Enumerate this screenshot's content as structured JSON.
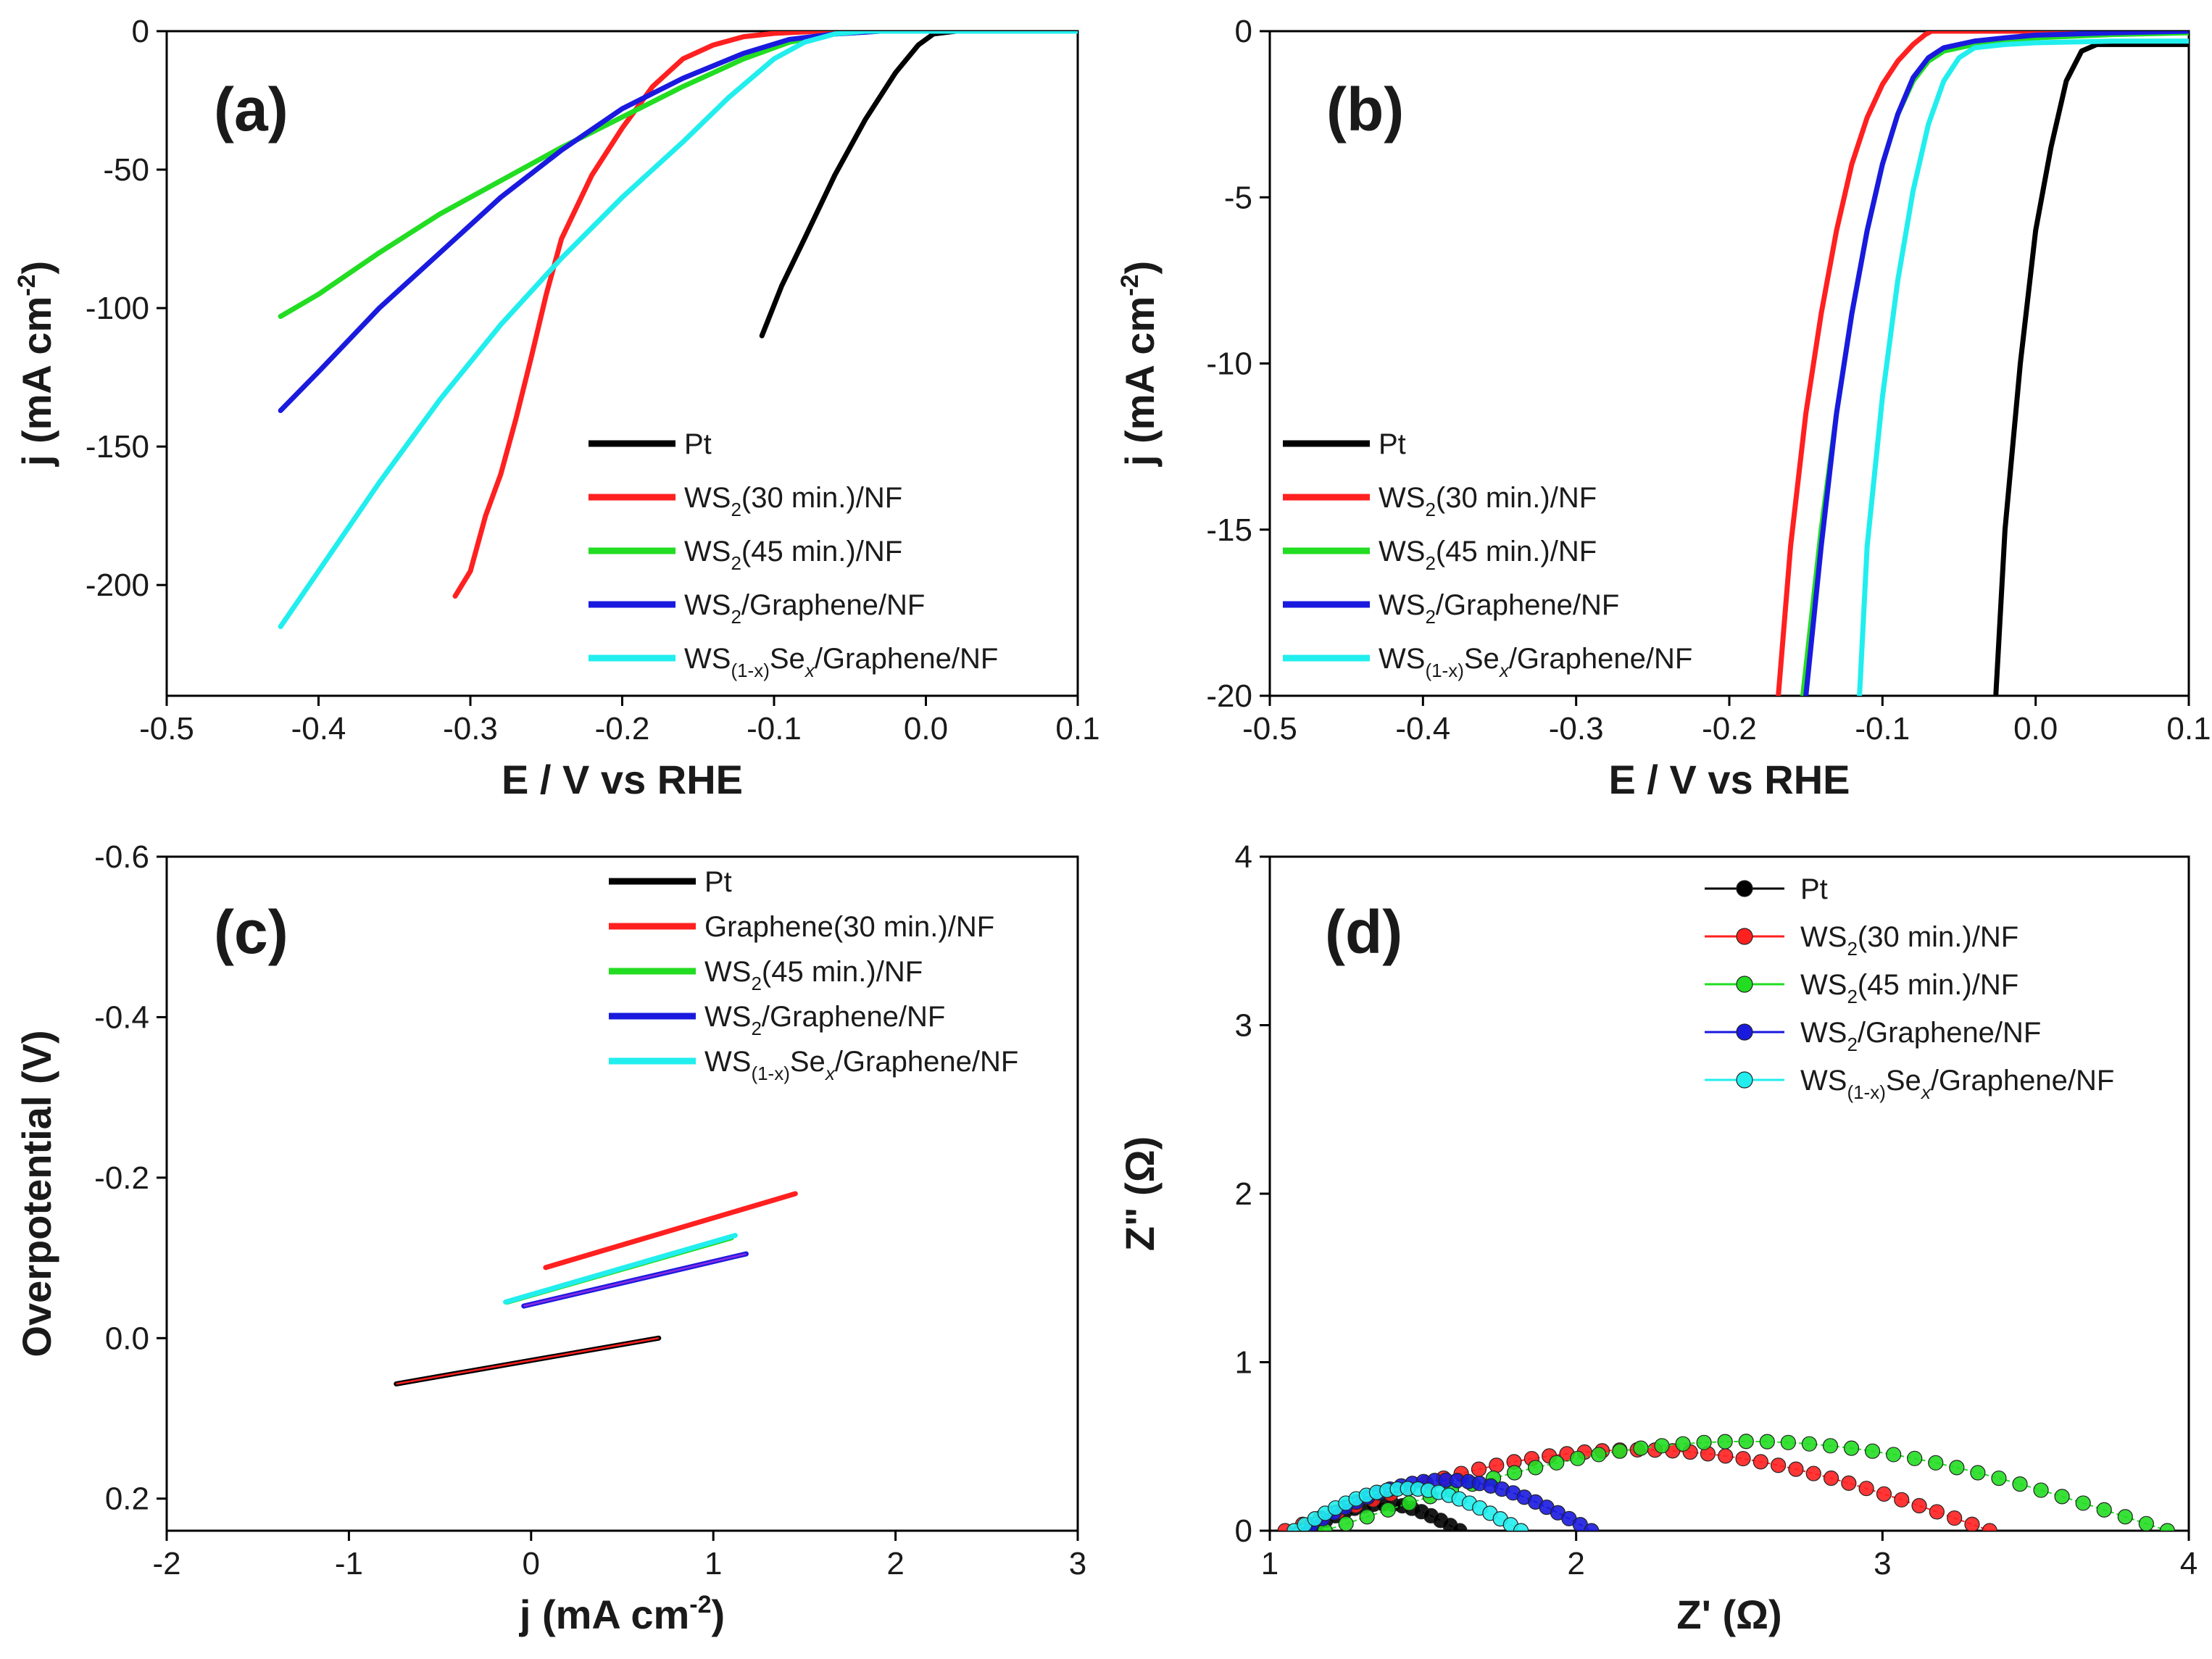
{
  "colors": {
    "Pt": "#000000",
    "red": "#ff2020",
    "green": "#22dd22",
    "blue": "#1a1adf",
    "cyan": "#22eeee",
    "purple": "#8a2be2"
  },
  "chart_data": [
    {
      "id": "a",
      "type": "line",
      "panel_label": "(a)",
      "xlabel": "E / V vs RHE",
      "ylabel": "j (mA cm-2)",
      "xlim": [
        -0.5,
        0.1
      ],
      "ylim": [
        -240,
        0
      ],
      "xticks": [
        -0.5,
        -0.4,
        -0.3,
        -0.2,
        -0.1,
        0.0,
        0.1
      ],
      "xtick_labels": [
        "-0.5",
        "-0.4",
        "-0.3",
        "-0.2",
        "-0.1",
        "0.0",
        "0.1"
      ],
      "yticks": [
        0,
        -50,
        -100,
        -150,
        -200
      ],
      "ytick_labels": [
        "0",
        "-50",
        "-100",
        "-150",
        "-200"
      ],
      "legend_position": "bottom-right",
      "series": [
        {
          "name": "Pt",
          "label_main": "Pt",
          "label_parts": [],
          "color": "#000000",
          "x": [
            -0.108,
            -0.095,
            -0.08,
            -0.06,
            -0.04,
            -0.02,
            -0.005,
            0.005,
            0.02,
            0.04,
            0.1
          ],
          "y": [
            -110,
            -92,
            -75,
            -52,
            -32,
            -15,
            -5,
            -1,
            0,
            0,
            0
          ]
        },
        {
          "name": "WS2(30 min.)/NF",
          "label_main": "WS",
          "label_parts": [
            "2",
            "(30 min.)/NF"
          ],
          "color": "#ff2020",
          "x": [
            -0.31,
            -0.3,
            -0.29,
            -0.28,
            -0.27,
            -0.26,
            -0.25,
            -0.24,
            -0.22,
            -0.2,
            -0.18,
            -0.16,
            -0.14,
            -0.12,
            -0.1,
            -0.07,
            0.1
          ],
          "y": [
            -204,
            -195,
            -175,
            -160,
            -140,
            -118,
            -95,
            -75,
            -52,
            -35,
            -20,
            -10,
            -5,
            -2,
            -0.8,
            0,
            0
          ]
        },
        {
          "name": "WS2(45 min.)/NF",
          "label_main": "WS",
          "label_parts": [
            "2",
            "(45 min.)/NF"
          ],
          "color": "#22dd22",
          "x": [
            -0.425,
            -0.4,
            -0.36,
            -0.32,
            -0.28,
            -0.24,
            -0.2,
            -0.16,
            -0.12,
            -0.09,
            -0.06,
            -0.03,
            0.1
          ],
          "y": [
            -103,
            -95,
            -80,
            -66,
            -54,
            -42,
            -31,
            -20,
            -10,
            -4,
            -1,
            0,
            0
          ]
        },
        {
          "name": "WS2/Graphene/NF",
          "label_main": "WS",
          "label_parts": [
            "2",
            "/Graphene/NF"
          ],
          "color": "#1a1adf",
          "x": [
            -0.425,
            -0.4,
            -0.36,
            -0.32,
            -0.28,
            -0.24,
            -0.2,
            -0.16,
            -0.12,
            -0.09,
            -0.06,
            -0.03,
            0.1
          ],
          "y": [
            -137,
            -123,
            -100,
            -80,
            -60,
            -43,
            -28,
            -17,
            -8,
            -3,
            -1,
            0,
            0
          ]
        },
        {
          "name": "WS(1-x)Sex/Graphene/NF",
          "label_main": "WS",
          "label_parts": [
            "(1-x)",
            "Se",
            "x",
            "/Graphene/NF"
          ],
          "color": "#22eeee",
          "x": [
            -0.425,
            -0.4,
            -0.36,
            -0.32,
            -0.28,
            -0.24,
            -0.2,
            -0.16,
            -0.13,
            -0.1,
            -0.08,
            -0.06,
            -0.04,
            0.1
          ],
          "y": [
            -215,
            -195,
            -163,
            -133,
            -106,
            -82,
            -60,
            -40,
            -24,
            -10,
            -4,
            -1,
            0,
            0
          ]
        }
      ]
    },
    {
      "id": "b",
      "type": "line",
      "panel_label": "(b)",
      "xlabel": "E / V vs RHE",
      "ylabel": "j (mA cm-2)",
      "xlim": [
        -0.5,
        0.1
      ],
      "ylim": [
        -20,
        0
      ],
      "xticks": [
        -0.5,
        -0.4,
        -0.3,
        -0.2,
        -0.1,
        0.0,
        0.1
      ],
      "xtick_labels": [
        "-0.5",
        "-0.4",
        "-0.3",
        "-0.2",
        "-0.1",
        "0.0",
        "0.1"
      ],
      "yticks": [
        0,
        -5,
        -10,
        -15,
        -20
      ],
      "ytick_labels": [
        "0",
        "-5",
        "-10",
        "-15",
        "-20"
      ],
      "legend_position": "bottom-left",
      "series": [
        {
          "name": "Pt",
          "label_main": "Pt",
          "label_parts": [],
          "color": "#000000",
          "x": [
            -0.026,
            -0.02,
            -0.01,
            0.0,
            0.01,
            0.02,
            0.03,
            0.04,
            0.1
          ],
          "y": [
            -20,
            -15,
            -10,
            -6,
            -3.5,
            -1.5,
            -0.6,
            -0.4,
            -0.4
          ]
        },
        {
          "name": "WS2(30 min.)/NF",
          "label_main": "WS",
          "label_parts": [
            "2",
            "(30 min.)/NF"
          ],
          "color": "#ff2020",
          "x": [
            -0.168,
            -0.16,
            -0.15,
            -0.14,
            -0.13,
            -0.12,
            -0.11,
            -0.1,
            -0.09,
            -0.08,
            -0.072,
            -0.068,
            0.1
          ],
          "y": [
            -20,
            -15.5,
            -11.5,
            -8.5,
            -6,
            -4,
            -2.6,
            -1.6,
            -0.9,
            -0.4,
            -0.1,
            0,
            0
          ]
        },
        {
          "name": "WS2(45 min.)/NF",
          "label_main": "WS",
          "label_parts": [
            "2",
            "(45 min.)/NF"
          ],
          "color": "#22dd22",
          "x": [
            -0.152,
            -0.14,
            -0.13,
            -0.12,
            -0.11,
            -0.1,
            -0.09,
            -0.08,
            -0.07,
            -0.06,
            -0.04,
            -0.02,
            0.0,
            0.05,
            0.1
          ],
          "y": [
            -20,
            -15,
            -11.5,
            -8.5,
            -6,
            -4,
            -2.5,
            -1.5,
            -0.9,
            -0.6,
            -0.4,
            -0.3,
            -0.2,
            -0.1,
            -0.05
          ]
        },
        {
          "name": "WS2/Graphene/NF",
          "label_main": "WS",
          "label_parts": [
            "2",
            "/Graphene/NF"
          ],
          "color": "#1a1adf",
          "x": [
            -0.15,
            -0.14,
            -0.13,
            -0.12,
            -0.11,
            -0.1,
            -0.09,
            -0.08,
            -0.07,
            -0.06,
            -0.04,
            -0.02,
            0.0,
            0.05,
            0.1
          ],
          "y": [
            -20,
            -15.5,
            -11.5,
            -8.5,
            -6,
            -4,
            -2.5,
            -1.4,
            -0.8,
            -0.5,
            -0.3,
            -0.2,
            -0.12,
            -0.05,
            0
          ]
        },
        {
          "name": "WS(1-x)Sex/Graphene/NF",
          "label_main": "WS",
          "label_parts": [
            "(1-x)",
            "Se",
            "x",
            "/Graphene/NF"
          ],
          "color": "#22eeee",
          "x": [
            -0.115,
            -0.11,
            -0.1,
            -0.09,
            -0.08,
            -0.07,
            -0.06,
            -0.05,
            -0.04,
            -0.02,
            0.0,
            0.05,
            0.1
          ],
          "y": [
            -20,
            -15.5,
            -11,
            -7.5,
            -4.8,
            -2.8,
            -1.5,
            -0.8,
            -0.5,
            -0.4,
            -0.35,
            -0.3,
            -0.3
          ]
        }
      ]
    },
    {
      "id": "c",
      "type": "line",
      "panel_label": "(c)",
      "xlabel": "j (mA cm-2)",
      "ylabel": "Overpotential (V)",
      "xlim": [
        -2,
        3
      ],
      "ylim": [
        0.24,
        -0.6
      ],
      "y_inverted": true,
      "xticks": [
        -2,
        -1,
        0,
        1,
        2,
        3
      ],
      "xtick_labels": [
        "-2",
        "-1",
        "0",
        "1",
        "2",
        "3"
      ],
      "yticks": [
        -0.6,
        -0.4,
        -0.2,
        0.0,
        0.2
      ],
      "ytick_labels": [
        "-0.6",
        "-0.4",
        "-0.2",
        "0.0",
        "0.2"
      ],
      "legend_position": "top-right",
      "series": [
        {
          "name": "Pt",
          "label_main": "Pt",
          "label_parts": [],
          "color": "#000000",
          "fit_color": "#ff2020",
          "x": [
            -0.74,
            0.7
          ],
          "y": [
            0.057,
            0.0
          ]
        },
        {
          "name": "Graphene(30 min.)/NF",
          "label_main": "Graphene(30 min.)/NF",
          "label_parts": [],
          "color": "#ff2020",
          "x": [
            0.08,
            1.45
          ],
          "y": [
            -0.088,
            -0.18
          ]
        },
        {
          "name": "WS2(45 min.)/NF",
          "label_main": "WS",
          "label_parts": [
            "2",
            "(45 min.)/NF"
          ],
          "color": "#22dd22",
          "x": [
            -0.13,
            1.1
          ],
          "y": [
            -0.045,
            -0.125
          ]
        },
        {
          "name": "WS2/Graphene/NF",
          "label_main": "WS",
          "label_parts": [
            "2",
            "/Graphene/NF"
          ],
          "color": "#1a1adf",
          "fit_color": "#8a2be2",
          "x": [
            -0.04,
            1.18
          ],
          "y": [
            -0.04,
            -0.105
          ]
        },
        {
          "name": "WS(1-x)Sex/Graphene/NF",
          "label_main": "WS",
          "label_parts": [
            "(1-x)",
            "Se",
            "x",
            "/Graphene/NF"
          ],
          "color": "#22eeee",
          "x": [
            -0.14,
            1.12
          ],
          "y": [
            -0.045,
            -0.128
          ]
        }
      ]
    },
    {
      "id": "d",
      "type": "scatter",
      "panel_label": "(d)",
      "xlabel": "Z' (Ω)",
      "ylabel": "Z\" (Ω)",
      "xlim": [
        1,
        4
      ],
      "ylim": [
        0,
        4
      ],
      "xticks": [
        1,
        2,
        3,
        4
      ],
      "xtick_labels": [
        "1",
        "2",
        "3",
        "4"
      ],
      "yticks": [
        0,
        1,
        2,
        3,
        4
      ],
      "ytick_labels": [
        "0",
        "1",
        "2",
        "3",
        "4"
      ],
      "legend_position": "top-right",
      "series": [
        {
          "name": "Pt",
          "label_main": "Pt",
          "label_parts": [],
          "color": "#000000",
          "x_start": 1.12,
          "x_end": 1.62,
          "peak": 0.16,
          "n": 16
        },
        {
          "name": "WS2(30 min.)/NF",
          "label_main": "WS",
          "label_parts": [
            "2",
            "(30 min.)/NF"
          ],
          "color": "#ff2020",
          "x_start": 1.05,
          "x_end": 3.35,
          "peak": 0.48,
          "n": 40
        },
        {
          "name": "WS2(45 min.)/NF",
          "label_main": "WS",
          "label_parts": [
            "2",
            "(45 min.)/NF"
          ],
          "color": "#22dd22",
          "x_start": 1.18,
          "x_end": 3.93,
          "peak": 0.53,
          "n": 40
        },
        {
          "name": "WS2/Graphene/NF",
          "label_main": "WS",
          "label_parts": [
            "2",
            "/Graphene/NF"
          ],
          "color": "#1a1adf",
          "x_start": 1.1,
          "x_end": 2.05,
          "peak": 0.3,
          "n": 26
        },
        {
          "name": "WS(1-x)Sex/Graphene/NF",
          "label_main": "WS",
          "label_parts": [
            "(1-x)",
            "Se",
            "x",
            "/Graphene/NF"
          ],
          "color": "#22eeee",
          "x_start": 1.08,
          "x_end": 1.82,
          "peak": 0.25,
          "n": 22
        }
      ]
    }
  ]
}
